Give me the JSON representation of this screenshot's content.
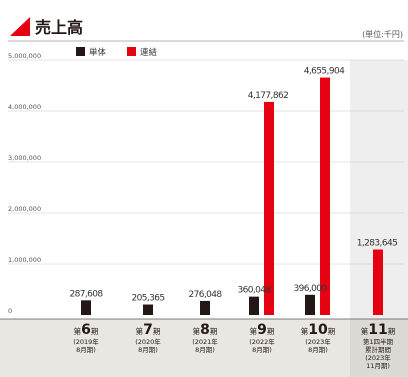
{
  "header": {
    "title": "売上高",
    "unit": "(単位:千円)"
  },
  "legend": [
    {
      "label": "単体",
      "color": "#231815"
    },
    {
      "label": "連結",
      "color": "#e50012"
    }
  ],
  "colors": {
    "standalone": "#231815",
    "consolidated": "#e50012",
    "accent_triangle": "#e50012",
    "axis_band": "#e9e7e2",
    "highlight_band": "#eeeeee"
  },
  "chart_data": {
    "type": "bar",
    "title": "売上高",
    "unit": "(単位:千円)",
    "categories": [
      "第6期",
      "第7期",
      "第8期",
      "第9期",
      "第10期",
      "第11期"
    ],
    "category_labels": [
      {
        "prefix": "第",
        "num": "6",
        "suffix": "期",
        "sub": [
          "(2019年",
          "8月期)"
        ]
      },
      {
        "prefix": "第",
        "num": "7",
        "suffix": "期",
        "sub": [
          "(2020年",
          "8月期)"
        ]
      },
      {
        "prefix": "第",
        "num": "8",
        "suffix": "期",
        "sub": [
          "(2021年",
          "8月期)"
        ]
      },
      {
        "prefix": "第",
        "num": "9",
        "suffix": "期",
        "sub": [
          "(2022年",
          "8月期)"
        ]
      },
      {
        "prefix": "第",
        "num": "10",
        "suffix": "期",
        "sub": [
          "(2023年",
          "8月期)"
        ]
      },
      {
        "prefix": "第",
        "num": "11",
        "suffix": "期",
        "sub": [
          "第1四半期",
          "累計期間",
          "(2023年",
          "11月期)"
        ]
      }
    ],
    "series": [
      {
        "name": "単体",
        "values": [
          287608,
          205365,
          276048,
          360048,
          396000,
          null
        ]
      },
      {
        "name": "連結",
        "values": [
          null,
          null,
          null,
          4177862,
          4655904,
          1283645
        ]
      }
    ],
    "data_labels": [
      "287,608",
      "205,365",
      "276,048",
      "360,048",
      "396,000",
      "4,177,862",
      "4,655,904",
      "1,283,645"
    ],
    "yticks": [
      "0",
      "1,000,000",
      "2,000,000",
      "3,000,000",
      "4,000,000",
      "5,000,000"
    ],
    "ytick_values": [
      0,
      1000000,
      2000000,
      3000000,
      4000000,
      5000000
    ],
    "ylim": [
      0,
      5000000
    ],
    "grid": true,
    "legend_position": "top-left"
  }
}
